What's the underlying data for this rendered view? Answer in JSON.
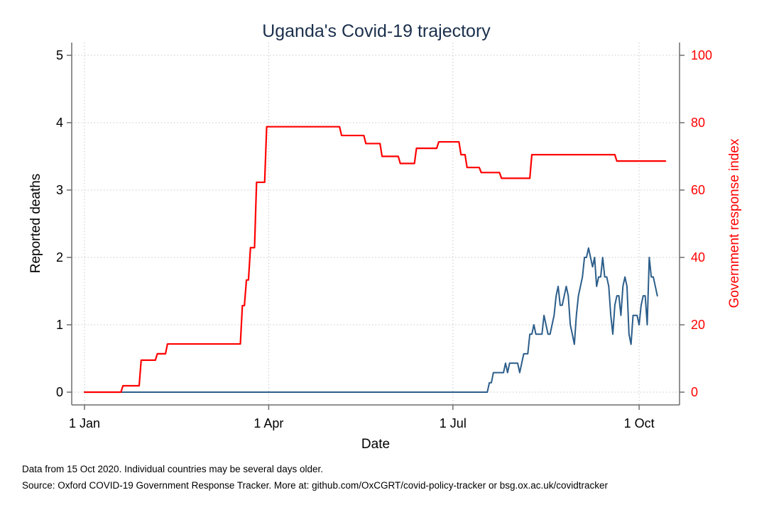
{
  "chart_data": {
    "type": "line",
    "title": "Uganda's Covid-19 trajectory",
    "xlabel": "Date",
    "ylabel": "Reported deaths",
    "ylabel_right": "Government response index",
    "x_ticks": [
      "1 Jan",
      "1 Apr",
      "1 Jul",
      "1 Oct"
    ],
    "y_ticks": [
      "0",
      "1",
      "2",
      "3",
      "4",
      "5"
    ],
    "y_ticks_right": [
      "0",
      "20",
      "40",
      "60",
      "80",
      "100"
    ],
    "xlim": [
      "2020-01-01",
      "2020-10-15"
    ],
    "ylim": [
      0,
      5
    ],
    "ylim_right": [
      0,
      100
    ],
    "grid": true,
    "series": [
      {
        "axis": "left",
        "color": "#2b5d8a",
        "step": false,
        "points": [
          [
            "2020-01-01",
            0
          ],
          [
            "2020-07-18",
            0
          ],
          [
            "2020-07-19",
            0.14
          ],
          [
            "2020-07-20",
            0.14
          ],
          [
            "2020-07-21",
            0.29
          ],
          [
            "2020-07-26",
            0.29
          ],
          [
            "2020-07-27",
            0.43
          ],
          [
            "2020-07-28",
            0.29
          ],
          [
            "2020-07-29",
            0.43
          ],
          [
            "2020-08-02",
            0.43
          ],
          [
            "2020-08-03",
            0.29
          ],
          [
            "2020-08-05",
            0.57
          ],
          [
            "2020-08-07",
            0.57
          ],
          [
            "2020-08-08",
            0.86
          ],
          [
            "2020-08-09",
            0.86
          ],
          [
            "2020-08-10",
            1.0
          ],
          [
            "2020-08-11",
            0.86
          ],
          [
            "2020-08-14",
            0.86
          ],
          [
            "2020-08-15",
            1.14
          ],
          [
            "2020-08-17",
            0.86
          ],
          [
            "2020-08-18",
            0.86
          ],
          [
            "2020-08-20",
            1.14
          ],
          [
            "2020-08-21",
            1.43
          ],
          [
            "2020-08-22",
            1.57
          ],
          [
            "2020-08-23",
            1.29
          ],
          [
            "2020-08-24",
            1.29
          ],
          [
            "2020-08-26",
            1.57
          ],
          [
            "2020-08-27",
            1.43
          ],
          [
            "2020-08-28",
            1.0
          ],
          [
            "2020-08-29",
            0.86
          ],
          [
            "2020-08-30",
            0.71
          ],
          [
            "2020-08-31",
            1.14
          ],
          [
            "2020-09-01",
            1.43
          ],
          [
            "2020-09-03",
            1.71
          ],
          [
            "2020-09-04",
            2.0
          ],
          [
            "2020-09-05",
            2.0
          ],
          [
            "2020-09-06",
            2.14
          ],
          [
            "2020-09-07",
            2.0
          ],
          [
            "2020-09-08",
            1.86
          ],
          [
            "2020-09-09",
            2.0
          ],
          [
            "2020-09-10",
            1.57
          ],
          [
            "2020-09-11",
            1.71
          ],
          [
            "2020-09-12",
            1.71
          ],
          [
            "2020-09-13",
            2.0
          ],
          [
            "2020-09-14",
            1.71
          ],
          [
            "2020-09-15",
            1.71
          ],
          [
            "2020-09-16",
            1.57
          ],
          [
            "2020-09-17",
            1.14
          ],
          [
            "2020-09-18",
            0.86
          ],
          [
            "2020-09-19",
            1.29
          ],
          [
            "2020-09-20",
            1.43
          ],
          [
            "2020-09-21",
            1.43
          ],
          [
            "2020-09-22",
            1.14
          ],
          [
            "2020-09-23",
            1.57
          ],
          [
            "2020-09-24",
            1.71
          ],
          [
            "2020-09-25",
            1.57
          ],
          [
            "2020-09-26",
            0.86
          ],
          [
            "2020-09-27",
            0.71
          ],
          [
            "2020-09-28",
            1.14
          ],
          [
            "2020-09-29",
            1.14
          ],
          [
            "2020-09-30",
            1.14
          ],
          [
            "2020-10-01",
            1.0
          ],
          [
            "2020-10-02",
            1.29
          ],
          [
            "2020-10-03",
            1.43
          ],
          [
            "2020-10-04",
            1.43
          ],
          [
            "2020-10-05",
            1.0
          ],
          [
            "2020-10-06",
            2.0
          ],
          [
            "2020-10-07",
            1.71
          ],
          [
            "2020-10-08",
            1.71
          ],
          [
            "2020-10-09",
            1.57
          ],
          [
            "2020-10-10",
            1.43
          ]
        ]
      },
      {
        "axis": "right",
        "color": "#ff0000",
        "step": true,
        "points": [
          [
            "2020-01-01",
            0
          ],
          [
            "2020-01-19",
            0
          ],
          [
            "2020-01-20",
            1.9
          ],
          [
            "2020-01-28",
            1.9
          ],
          [
            "2020-01-29",
            9.5
          ],
          [
            "2020-02-05",
            9.5
          ],
          [
            "2020-02-06",
            11.4
          ],
          [
            "2020-02-10",
            11.4
          ],
          [
            "2020-02-11",
            14.3
          ],
          [
            "2020-03-18",
            14.3
          ],
          [
            "2020-03-19",
            25.7
          ],
          [
            "2020-03-20",
            25.7
          ],
          [
            "2020-03-21",
            33.3
          ],
          [
            "2020-03-22",
            33.3
          ],
          [
            "2020-03-23",
            42.9
          ],
          [
            "2020-03-25",
            42.9
          ],
          [
            "2020-03-26",
            62.3
          ],
          [
            "2020-03-30",
            62.3
          ],
          [
            "2020-03-31",
            78.8
          ],
          [
            "2020-05-06",
            78.8
          ],
          [
            "2020-05-07",
            76.2
          ],
          [
            "2020-05-18",
            76.2
          ],
          [
            "2020-05-19",
            73.8
          ],
          [
            "2020-05-26",
            73.8
          ],
          [
            "2020-05-27",
            70.0
          ],
          [
            "2020-06-04",
            70.0
          ],
          [
            "2020-06-05",
            67.9
          ],
          [
            "2020-06-12",
            67.9
          ],
          [
            "2020-06-13",
            72.4
          ],
          [
            "2020-06-23",
            72.4
          ],
          [
            "2020-06-24",
            74.3
          ],
          [
            "2020-07-04",
            74.3
          ],
          [
            "2020-07-05",
            70.5
          ],
          [
            "2020-07-07",
            70.5
          ],
          [
            "2020-07-08",
            66.7
          ],
          [
            "2020-07-14",
            66.7
          ],
          [
            "2020-07-15",
            65.2
          ],
          [
            "2020-07-24",
            65.2
          ],
          [
            "2020-07-25",
            63.5
          ],
          [
            "2020-08-08",
            63.5
          ],
          [
            "2020-08-09",
            70.5
          ],
          [
            "2020-09-19",
            70.5
          ],
          [
            "2020-09-20",
            68.6
          ],
          [
            "2020-10-14",
            68.6
          ]
        ]
      }
    ]
  },
  "footnotes": {
    "line1": "Data from 15 Oct 2020. Individual countries may be several days older.",
    "line2": "Source: Oxford COVID-19 Government Response Tracker. More at: github.com/OxCGRT/covid-policy-tracker or bsg.ox.ac.uk/covidtracker"
  }
}
